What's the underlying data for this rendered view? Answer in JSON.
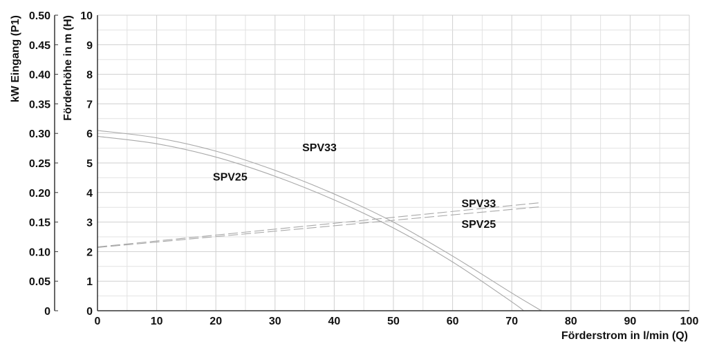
{
  "chart_data": {
    "type": "line",
    "title": "",
    "xlabel": "Förderstrom in l/min (Q)",
    "ylabel": "Förderhöhe in m (H)",
    "y2label": "kW Eingang (P1)",
    "xlim": [
      0,
      100
    ],
    "ylim": [
      0,
      10
    ],
    "y2lim": [
      0,
      0.5
    ],
    "x_ticks": [
      "0",
      "10",
      "20",
      "30",
      "40",
      "50",
      "60",
      "70",
      "80",
      "90",
      "100"
    ],
    "y_ticks": [
      "0",
      "1",
      "2",
      "3",
      "4",
      "5",
      "6",
      "7",
      "8",
      "9",
      "10"
    ],
    "y2_ticks": [
      "0",
      "0.05",
      "0.10",
      "0.15",
      "0.20",
      "0.25",
      "0.30",
      "0.35",
      "0.40",
      "0.45",
      "0.50"
    ],
    "grid": true,
    "series": [
      {
        "name": "SPV33",
        "kind": "head",
        "axis": "left",
        "style": "solid",
        "x": [
          0,
          10,
          20,
          30,
          40,
          50,
          60,
          70,
          75
        ],
        "y": [
          6.1,
          5.85,
          5.4,
          4.75,
          3.95,
          3.0,
          1.85,
          0.6,
          0.0
        ]
      },
      {
        "name": "SPV25",
        "kind": "head",
        "axis": "left",
        "style": "solid",
        "x": [
          0,
          10,
          20,
          30,
          40,
          50,
          60,
          70,
          72
        ],
        "y": [
          5.9,
          5.65,
          5.2,
          4.55,
          3.75,
          2.8,
          1.65,
          0.3,
          0.0
        ]
      },
      {
        "name": "SPV33",
        "kind": "power",
        "axis": "right",
        "style": "dashed",
        "x": [
          0,
          75
        ],
        "y": [
          0.108,
          0.183
        ]
      },
      {
        "name": "SPV25",
        "kind": "power",
        "axis": "right",
        "style": "dashed",
        "x": [
          0,
          75
        ],
        "y": [
          0.107,
          0.176
        ]
      }
    ]
  }
}
